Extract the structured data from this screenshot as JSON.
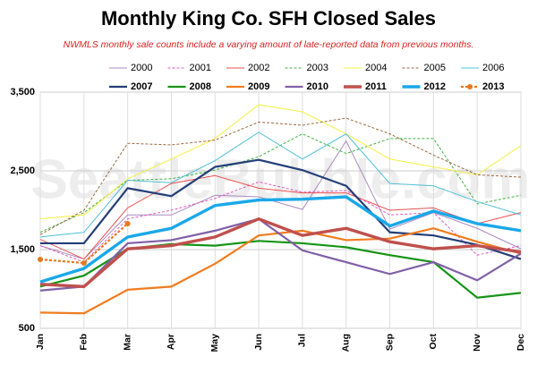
{
  "chart_data": {
    "type": "line",
    "title": "Monthly King Co. SFH Closed Sales",
    "subtitle": "NWMLS monthly sale counts include a varying amount of late-reported  data from previous months.",
    "watermark": "SeattleBubble.com",
    "categories": [
      "Jan",
      "Feb",
      "Mar",
      "Apr",
      "May",
      "Jun",
      "Jul",
      "Aug",
      "Sep",
      "Oct",
      "Nov",
      "Dec"
    ],
    "ylim": [
      500,
      3500
    ],
    "yticks": [
      500,
      {
        "value": 1500,
        "label": "1,500"
      },
      {
        "value": 2500,
        "label": "2,500"
      },
      {
        "value": 3500,
        "label": "3,500"
      }
    ],
    "grid": true,
    "series": [
      {
        "name": "2000",
        "color": "#a98bc0",
        "weight": "normal",
        "values": [
          1550,
          1380,
          1940,
          1940,
          2190,
          2170,
          2010,
          2880,
          1760,
          1970,
          1770,
          1510
        ]
      },
      {
        "name": "2001",
        "color": "#e05ac0",
        "weight": "normal",
        "dashed": true,
        "values": [
          1550,
          1340,
          1890,
          2000,
          2150,
          2360,
          2230,
          2250,
          1940,
          1970,
          1430,
          1550
        ]
      },
      {
        "name": "2002",
        "color": "#e85050",
        "weight": "normal",
        "values": [
          1630,
          1380,
          2030,
          2340,
          2440,
          2280,
          2220,
          2220,
          2000,
          2030,
          1830,
          1970
        ]
      },
      {
        "name": "2003",
        "color": "#40b040",
        "weight": "normal",
        "dashed": true,
        "values": [
          1720,
          1970,
          2380,
          2400,
          2510,
          2680,
          2970,
          2720,
          2910,
          2910,
          2080,
          2190
        ]
      },
      {
        "name": "2004",
        "color": "#f4f040",
        "weight": "normal",
        "values": [
          1890,
          1940,
          2400,
          2650,
          2910,
          3340,
          3250,
          2970,
          2650,
          2550,
          2450,
          2820
        ]
      },
      {
        "name": "2005",
        "color": "#9a6a40",
        "weight": "normal",
        "dashed": true,
        "values": [
          1690,
          2000,
          2850,
          2830,
          2890,
          3120,
          3080,
          3170,
          2970,
          2700,
          2450,
          2420
        ]
      },
      {
        "name": "2006",
        "color": "#50c0d8",
        "weight": "normal",
        "values": [
          1660,
          1720,
          2380,
          2350,
          2630,
          2990,
          2650,
          2970,
          2340,
          2310,
          2110,
          1940
        ]
      },
      {
        "name": "2007",
        "color": "#243f78",
        "weight": "heavy",
        "values": [
          1580,
          1580,
          2280,
          2180,
          2550,
          2640,
          2510,
          2310,
          1720,
          1680,
          1560,
          1380
        ]
      },
      {
        "name": "2008",
        "color": "#169416",
        "weight": "heavy",
        "values": [
          1030,
          1170,
          1510,
          1570,
          1550,
          1610,
          1580,
          1530,
          1430,
          1340,
          890,
          950
        ]
      },
      {
        "name": "2009",
        "color": "#f07c20",
        "weight": "heavy",
        "values": [
          700,
          690,
          990,
          1030,
          1320,
          1680,
          1740,
          1620,
          1640,
          1770,
          1600,
          1450
        ]
      },
      {
        "name": "2010",
        "color": "#8060a8",
        "weight": "heavy",
        "values": [
          980,
          1030,
          1580,
          1620,
          1740,
          1890,
          1490,
          1340,
          1190,
          1340,
          1110,
          1450
        ]
      },
      {
        "name": "2011",
        "color": "#c0504d",
        "weight": "bold",
        "values": [
          1060,
          1030,
          1510,
          1550,
          1660,
          1890,
          1680,
          1770,
          1600,
          1510,
          1550,
          1470
        ]
      },
      {
        "name": "2012",
        "color": "#1aa8e8",
        "weight": "bold",
        "values": [
          1090,
          1260,
          1660,
          1770,
          2060,
          2130,
          2140,
          2170,
          1800,
          1990,
          1830,
          1740
        ]
      },
      {
        "name": "2013",
        "color": "#e8781e",
        "weight": "heavy",
        "dashed": true,
        "markers": true,
        "values": [
          1375,
          1330,
          1830,
          null,
          null,
          null,
          null,
          null,
          null,
          null,
          null,
          null
        ]
      }
    ]
  }
}
